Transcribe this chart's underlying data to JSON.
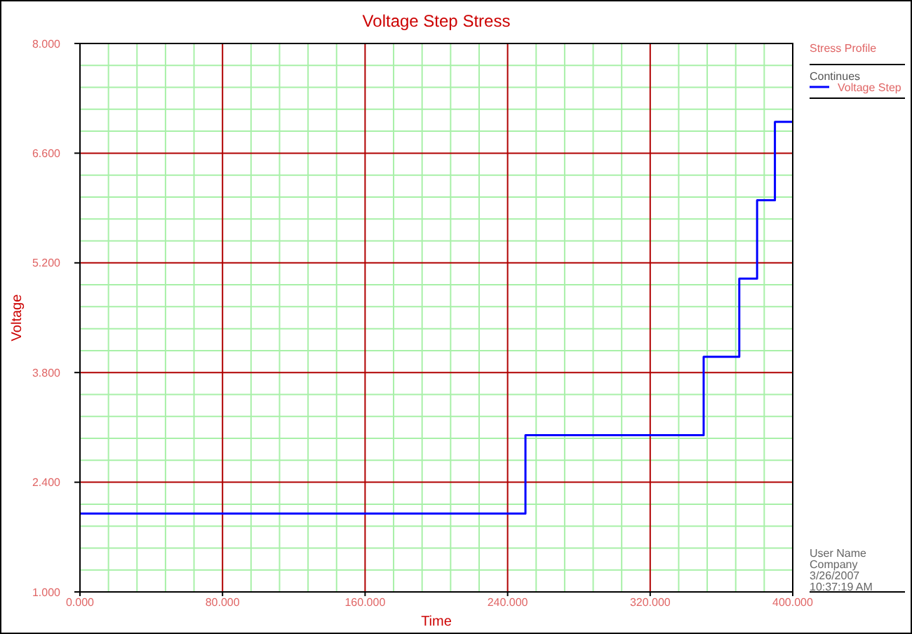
{
  "chart_data": {
    "type": "step",
    "title": "Voltage Step Stress",
    "xlabel": "Time",
    "ylabel": "Voltage",
    "legend_title": "Stress Profile",
    "series": [
      {
        "name": "Voltage Step",
        "color": "#0000ff",
        "x": [
          0,
          250,
          350,
          370,
          380,
          390,
          400
        ],
        "values": [
          2,
          3,
          4,
          5,
          6,
          7,
          7
        ]
      }
    ],
    "xlim": [
      0,
      400
    ],
    "xticks": [
      {
        "value": 0,
        "label": "0.000"
      },
      {
        "value": 16,
        "label": null
      },
      {
        "value": 32,
        "label": null
      },
      {
        "value": 48,
        "label": null
      },
      {
        "value": 64,
        "label": null
      },
      {
        "value": 80,
        "label": "80.000"
      },
      {
        "value": 96,
        "label": null
      },
      {
        "value": 112,
        "label": null
      },
      {
        "value": 128,
        "label": null
      },
      {
        "value": 144,
        "label": null
      },
      {
        "value": 160,
        "label": "160.000"
      },
      {
        "value": 176,
        "label": null
      },
      {
        "value": 192,
        "label": null
      },
      {
        "value": 208,
        "label": null
      },
      {
        "value": 224,
        "label": null
      },
      {
        "value": 240,
        "label": "240.000"
      },
      {
        "value": 256,
        "label": null
      },
      {
        "value": 272,
        "label": null
      },
      {
        "value": 288,
        "label": null
      },
      {
        "value": 304,
        "label": null
      },
      {
        "value": 320,
        "label": "320.000"
      },
      {
        "value": 336,
        "label": null
      },
      {
        "value": 352,
        "label": null
      },
      {
        "value": 368,
        "label": null
      },
      {
        "value": 384,
        "label": null
      },
      {
        "value": 400,
        "label": "400.000"
      }
    ],
    "ylim": [
      1,
      8
    ],
    "yticks": [
      {
        "value": 1,
        "label": "1.000"
      },
      {
        "value": 1.28,
        "label": null
      },
      {
        "value": 1.56,
        "label": null
      },
      {
        "value": 1.84,
        "label": null
      },
      {
        "value": 2.12,
        "label": null
      },
      {
        "value": 2.4,
        "label": "2.400"
      },
      {
        "value": 2.68,
        "label": null
      },
      {
        "value": 2.96,
        "label": null
      },
      {
        "value": 3.24,
        "label": null
      },
      {
        "value": 3.52,
        "label": null
      },
      {
        "value": 3.8,
        "label": "3.800"
      },
      {
        "value": 4.08,
        "label": null
      },
      {
        "value": 4.36,
        "label": null
      },
      {
        "value": 4.64,
        "label": null
      },
      {
        "value": 4.92,
        "label": null
      },
      {
        "value": 5.2,
        "label": "5.200"
      },
      {
        "value": 5.48,
        "label": null
      },
      {
        "value": 5.76,
        "label": null
      },
      {
        "value": 6.04,
        "label": null
      },
      {
        "value": 6.32,
        "label": null
      },
      {
        "value": 6.6,
        "label": "6.600"
      },
      {
        "value": 6.88,
        "label": null
      },
      {
        "value": 7.16,
        "label": null
      },
      {
        "value": 7.44,
        "label": null
      },
      {
        "value": 7.72,
        "label": null
      },
      {
        "value": 8,
        "label": "8.000"
      }
    ],
    "grid": true,
    "legend": "right",
    "line_style": "solid",
    "annotations": [
      "Continues",
      "User Name",
      "Company",
      "3/26/2007",
      "10:37:19 AM"
    ]
  }
}
